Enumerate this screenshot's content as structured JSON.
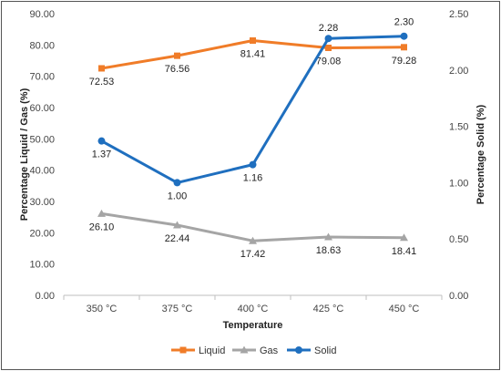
{
  "chart_data": {
    "type": "line",
    "title": "",
    "xlabel": "Temperature",
    "ylabel_left": "Percentage Liquid / Gas (%)",
    "ylabel_right": "Percentage Solid (%)",
    "categories": [
      "350 °C",
      "375 °C",
      "400 °C",
      "425 °C",
      "450 °C"
    ],
    "ylim_left": [
      0,
      90
    ],
    "ylim_right": [
      0,
      2.5
    ],
    "yticks_left": [
      "0.00",
      "10.00",
      "20.00",
      "30.00",
      "40.00",
      "50.00",
      "60.00",
      "70.00",
      "80.00",
      "90.00"
    ],
    "yticks_right": [
      "0.00",
      "0.50",
      "1.00",
      "1.50",
      "2.00",
      "2.50"
    ],
    "grid": false,
    "legend_position": "bottom",
    "series": [
      {
        "name": "Liquid",
        "axis": "left",
        "color": "#f07c28",
        "marker": "square",
        "values": [
          72.53,
          76.56,
          81.41,
          79.08,
          79.28
        ],
        "labels": [
          "72.53",
          "76.56",
          "81.41",
          "79.08",
          "79.28"
        ]
      },
      {
        "name": "Gas",
        "axis": "left",
        "color": "#a5a5a5",
        "marker": "triangle",
        "values": [
          26.1,
          22.44,
          17.42,
          18.63,
          18.41
        ],
        "labels": [
          "26.10",
          "22.44",
          "17.42",
          "18.63",
          "18.41"
        ]
      },
      {
        "name": "Solid",
        "axis": "right",
        "color": "#1f6fbf",
        "marker": "circle",
        "values": [
          1.37,
          1.0,
          1.16,
          2.28,
          2.3
        ],
        "labels": [
          "1.37",
          "1.00",
          "1.16",
          "2.28",
          "2.30"
        ]
      }
    ]
  }
}
